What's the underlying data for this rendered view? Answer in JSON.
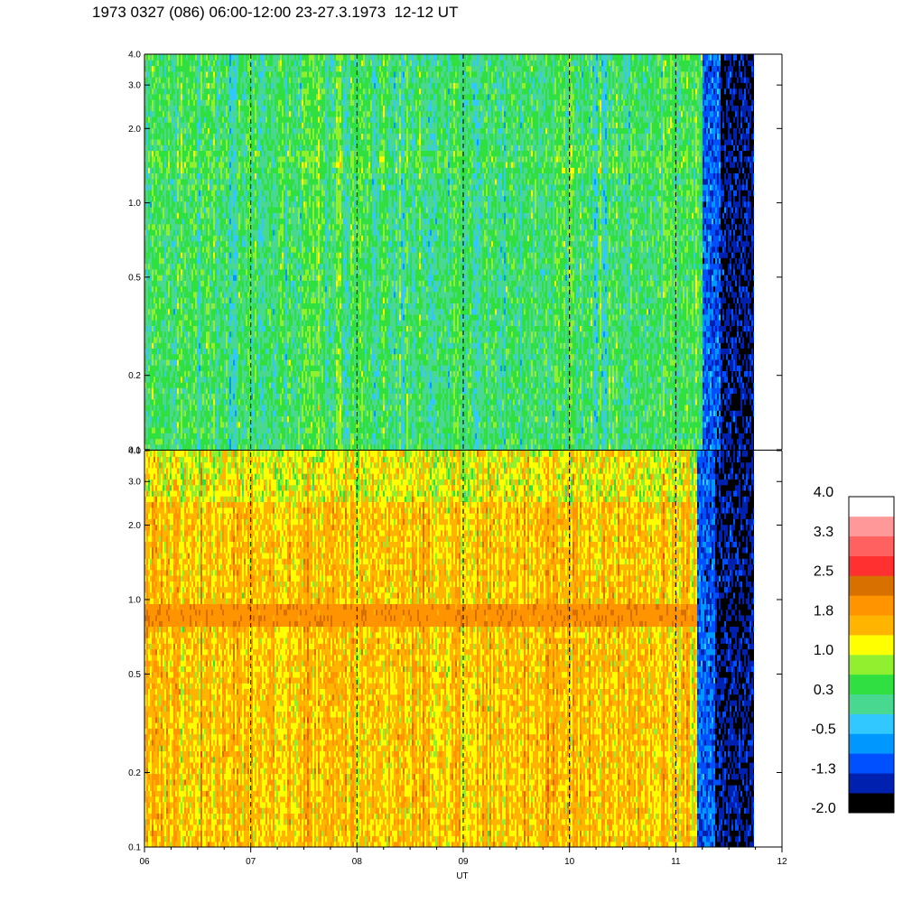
{
  "title": "1973 0327 (086) 06:00-12:00 23-27.3.1973  12-12 UT",
  "chart_data": {
    "type": "heatmap",
    "xlabel": "UT",
    "x_ticks": [
      "06",
      "07",
      "08",
      "09",
      "10",
      "11",
      "12"
    ],
    "x_range": [
      6,
      12
    ],
    "data_end_hour": 11.75,
    "dashed_hours": [
      7,
      8,
      9,
      10,
      11
    ],
    "panels": [
      {
        "name": "upper",
        "ylim": [
          0.1,
          4.0
        ],
        "y_scale": "log",
        "y_ticks": [
          "0.1",
          "0.2",
          "0.5",
          "1.0",
          "2.0",
          "3.0",
          "4.0"
        ],
        "y_values": [
          0.1,
          0.2,
          0.5,
          1.0,
          2.0,
          3.0,
          4.0
        ],
        "dominant_level": 0.3,
        "dropoff_hour": 11.25
      },
      {
        "name": "lower",
        "ylim": [
          0.1,
          4.0
        ],
        "y_scale": "log",
        "y_ticks": [
          "0.1",
          "0.2",
          "0.5",
          "1.0",
          "2.0",
          "3.0",
          "4.0"
        ],
        "y_values": [
          0.1,
          0.2,
          0.5,
          1.0,
          2.0,
          3.0,
          4.0
        ],
        "dominant_level": 1.5,
        "band_freq": [
          0.8,
          0.95
        ],
        "band_level": 2.0,
        "dropoff_hour": 11.2
      }
    ],
    "colorbar": {
      "labels": [
        "4.0",
        "3.3",
        "2.5",
        "1.8",
        "1.0",
        "0.3",
        "-0.5",
        "-1.3",
        "-2.0"
      ],
      "range": [
        -2.0,
        4.0
      ],
      "colors": [
        "#000000",
        "#0020b0",
        "#0050ff",
        "#0098ff",
        "#30c8ff",
        "#48d890",
        "#30e040",
        "#90f030",
        "#ffff00",
        "#ffb400",
        "#ff9400",
        "#d87000",
        "#ff3030",
        "#ff6060",
        "#ff9898",
        "#ffffff"
      ]
    }
  }
}
